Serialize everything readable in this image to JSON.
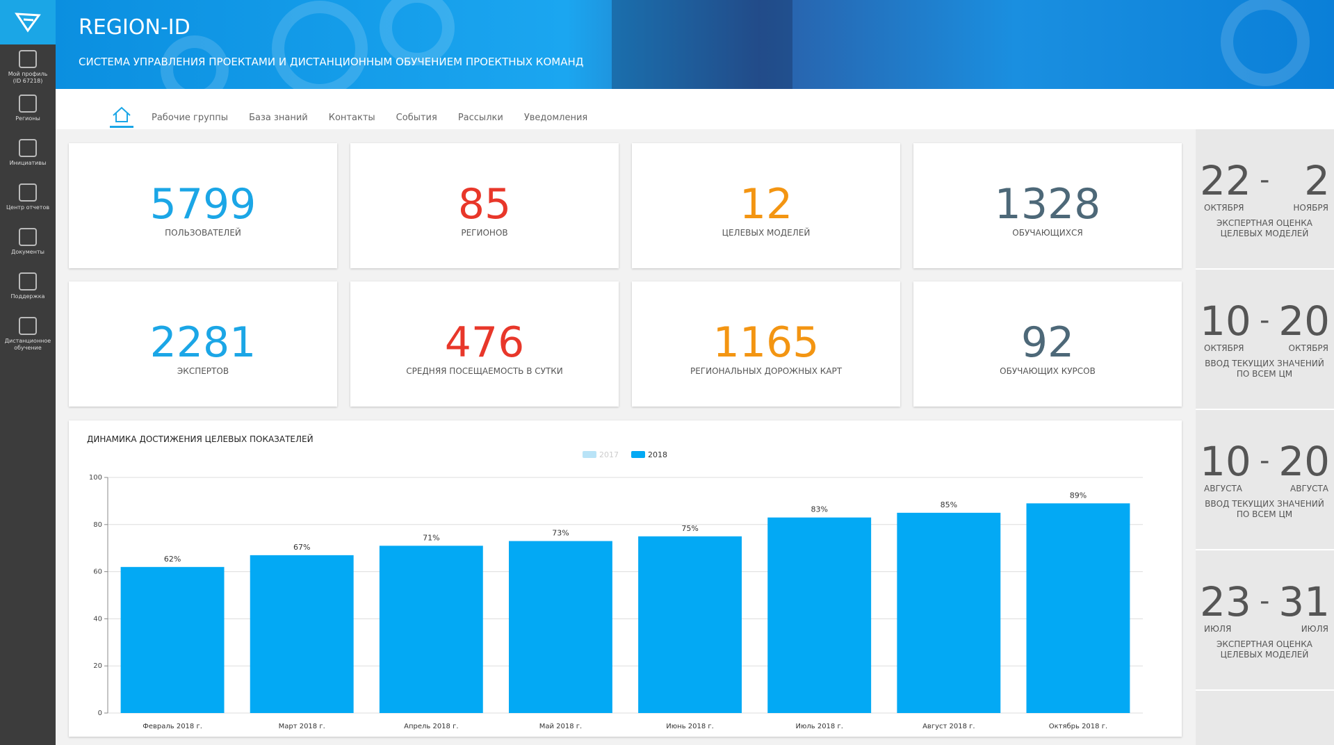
{
  "brand": "REGION-ID",
  "subtitle": "СИСТЕМА УПРАВЛЕНИЯ ПРОЕКТАМИ И ДИСТАНЦИОННЫМ ОБУЧЕНИЕМ ПРОЕКТНЫХ КОМАНД",
  "sidebar": [
    {
      "label": "Мой профиль",
      "sub": "(ID 67218)"
    },
    {
      "label": "Регионы"
    },
    {
      "label": "Инициативы"
    },
    {
      "label": "Центр отчетов"
    },
    {
      "label": "Документы"
    },
    {
      "label": "Поддержка"
    },
    {
      "label": "Дистанционное обучение"
    }
  ],
  "nav": [
    "Рабочие группы",
    "База знаний",
    "Контакты",
    "События",
    "Рассылки",
    "Уведомления"
  ],
  "stats": [
    {
      "value": 5799,
      "label": "ПОЛЬЗОВАТЕЛЕЙ",
      "color": "#1ba6e6"
    },
    {
      "value": 85,
      "label": "РЕГИОНОВ",
      "color": "#e8372a"
    },
    {
      "value": 12,
      "label": "ЦЕЛЕВЫХ МОДЕЛЕЙ",
      "color": "#f39512"
    },
    {
      "value": 1328,
      "label": "ОБУЧАЮЩИХСЯ",
      "color": "#4d6878"
    },
    {
      "value": 2281,
      "label": "ЭКСПЕРТОВ",
      "color": "#1ba6e6"
    },
    {
      "value": 476,
      "label": "СРЕДНЯЯ ПОСЕЩАЕМОСТЬ В СУТКИ",
      "color": "#e8372a"
    },
    {
      "value": 1165,
      "label": "РЕГИОНАЛЬНЫХ ДОРОЖНЫХ КАРТ",
      "color": "#f39512"
    },
    {
      "value": 92,
      "label": "ОБУЧАЮЩИХ КУРСОВ",
      "color": "#4d6878"
    }
  ],
  "schedule": [
    {
      "from": "22",
      "from_month": "ОКТЯБРЯ",
      "to": "2",
      "to_month": "НОЯБРЯ",
      "label": "ЭКСПЕРТНАЯ ОЦЕНКА ЦЕЛЕВЫХ МОДЕЛЕЙ"
    },
    {
      "from": "10",
      "from_month": "ОКТЯБРЯ",
      "to": "20",
      "to_month": "ОКТЯБРЯ",
      "label": "ВВОД ТЕКУЩИХ ЗНАЧЕНИЙ ПО ВСЕМ ЦМ"
    },
    {
      "from": "10",
      "from_month": "АВГУСТА",
      "to": "20",
      "to_month": "АВГУСТА",
      "label": "ВВОД ТЕКУЩИХ ЗНАЧЕНИЙ ПО ВСЕМ ЦМ"
    },
    {
      "from": "23",
      "from_month": "ИЮЛЯ",
      "to": "31",
      "to_month": "ИЮЛЯ",
      "label": "ЭКСПЕРТНАЯ ОЦЕНКА ЦЕЛЕВЫХ МОДЕЛЕЙ"
    }
  ],
  "chart_data": {
    "type": "bar",
    "title": "ДИНАМИКА ДОСТИЖЕНИЯ ЦЕЛЕВЫХ ПОКАЗАТЕЛЕЙ",
    "categories": [
      "Февраль 2018 г.",
      "Март 2018 г.",
      "Апрель 2018 г.",
      "Май 2018 г.",
      "Июнь 2018 г.",
      "Июль 2018 г.",
      "Август 2018 г.",
      "Октябрь 2018 г."
    ],
    "series": [
      {
        "name": "2017",
        "color": "#b9e3f7",
        "hidden": true,
        "values": [
          null,
          null,
          null,
          null,
          null,
          null,
          null,
          null
        ]
      },
      {
        "name": "2018",
        "color": "#03a9f4",
        "values": [
          62,
          67,
          71,
          73,
          75,
          83,
          85,
          89
        ],
        "value_labels": [
          "62%",
          "67%",
          "71%",
          "73%",
          "75%",
          "83%",
          "85%",
          "89%"
        ]
      }
    ],
    "ylim": [
      0,
      100
    ],
    "yticks": [
      0,
      20,
      40,
      60,
      80,
      100
    ],
    "grid": true
  }
}
